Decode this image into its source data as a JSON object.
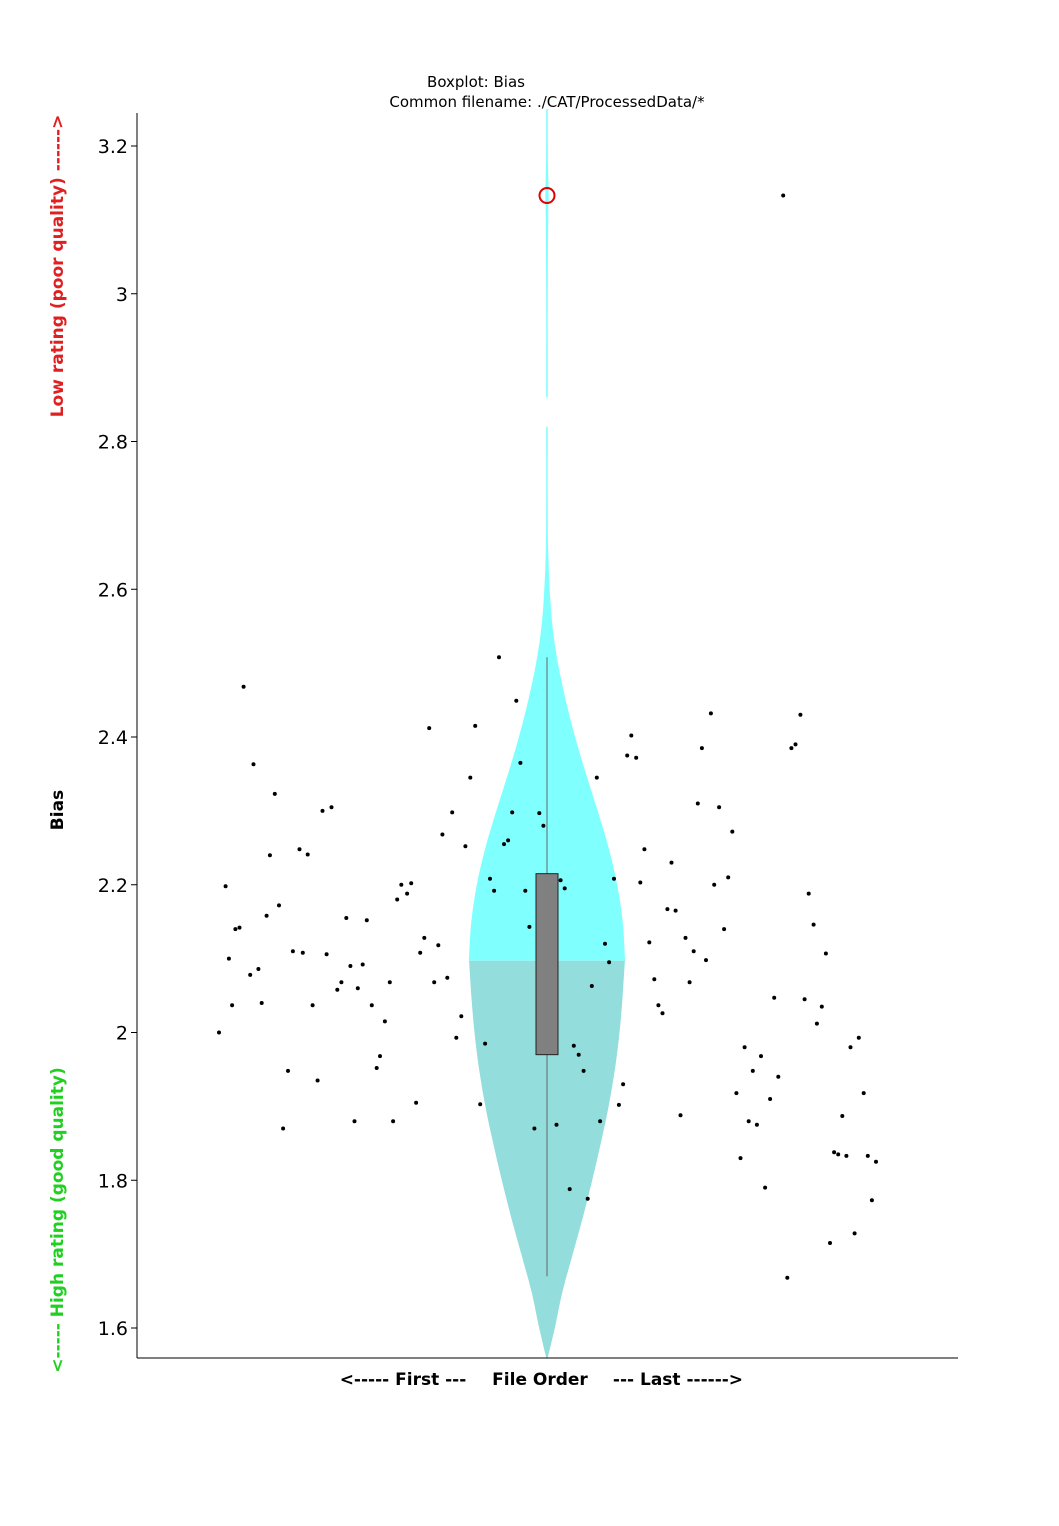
{
  "chart_data": {
    "type": "violin-boxplot",
    "title": "Boxplot: Bias",
    "subtitle": "Common filename: ./CAT/ProcessedData/*",
    "ylabel": "Bias",
    "xlabel_left": "<----- First ---",
    "xlabel_center": "File Order",
    "xlabel_right": "--- Last ------>",
    "quality_high_label": "Low rating (poor quality) ------>",
    "quality_low_label": "<----- High rating (good quality)",
    "ylim": [
      1.56,
      3.25
    ],
    "yticks": [
      1.6,
      1.8,
      2.0,
      2.2,
      2.4,
      2.6,
      2.8,
      3.0,
      3.2
    ],
    "ytick_labels": [
      "1.6",
      "1.8",
      "2",
      "2.2",
      "2.4",
      "2.6",
      "2.8",
      "3",
      "3.2"
    ],
    "box": {
      "q1": 1.97,
      "median": 2.097,
      "q3": 2.215,
      "whisker_low": 1.67,
      "whisker_high": 2.508
    },
    "outlier": 3.133,
    "violin_upper_color": "#80FFFF",
    "violin_lower_color": "#93DDDD",
    "box_color": "#808080",
    "outlier_color": "#E00000",
    "quality_high_color": "#E02020",
    "quality_low_color": "#20D020",
    "violin_profile": [
      [
        1.56,
        0.0
      ],
      [
        1.6,
        0.1
      ],
      [
        1.65,
        0.2
      ],
      [
        1.7,
        0.33
      ],
      [
        1.75,
        0.46
      ],
      [
        1.8,
        0.58
      ],
      [
        1.85,
        0.69
      ],
      [
        1.9,
        0.79
      ],
      [
        1.95,
        0.87
      ],
      [
        2.0,
        0.93
      ],
      [
        2.05,
        0.97
      ],
      [
        2.1,
        1.0
      ],
      [
        2.15,
        0.97
      ],
      [
        2.2,
        0.9
      ],
      [
        2.25,
        0.79
      ],
      [
        2.3,
        0.65
      ],
      [
        2.35,
        0.5
      ],
      [
        2.4,
        0.36
      ],
      [
        2.45,
        0.24
      ],
      [
        2.5,
        0.14
      ],
      [
        2.55,
        0.07
      ],
      [
        2.6,
        0.035
      ],
      [
        2.65,
        0.015
      ],
      [
        2.7,
        0.01
      ],
      [
        2.8,
        0.008
      ],
      [
        2.82,
        0.0
      ],
      [
        2.85,
        0.0
      ],
      [
        2.86,
        0.008
      ],
      [
        3.0,
        0.008
      ],
      [
        3.1,
        0.015
      ],
      [
        3.133,
        0.02
      ],
      [
        3.18,
        0.012
      ],
      [
        3.24,
        0.004
      ],
      [
        3.25,
        0.0
      ]
    ],
    "points": [
      [
        0.0,
        2.0
      ],
      [
        0.008,
        2.198
      ],
      [
        0.012,
        2.1
      ],
      [
        0.016,
        2.037
      ],
      [
        0.02,
        2.14
      ],
      [
        0.025,
        2.142
      ],
      [
        0.03,
        2.468
      ],
      [
        0.038,
        2.078
      ],
      [
        0.042,
        2.363
      ],
      [
        0.048,
        2.086
      ],
      [
        0.052,
        2.04
      ],
      [
        0.058,
        2.158
      ],
      [
        0.062,
        2.24
      ],
      [
        0.068,
        2.323
      ],
      [
        0.073,
        2.172
      ],
      [
        0.078,
        1.87
      ],
      [
        0.084,
        1.948
      ],
      [
        0.09,
        2.11
      ],
      [
        0.098,
        2.248
      ],
      [
        0.102,
        2.108
      ],
      [
        0.108,
        2.241
      ],
      [
        0.114,
        2.037
      ],
      [
        0.12,
        1.935
      ],
      [
        0.126,
        2.3
      ],
      [
        0.131,
        2.106
      ],
      [
        0.137,
        2.305
      ],
      [
        0.144,
        2.058
      ],
      [
        0.149,
        2.068
      ],
      [
        0.155,
        2.155
      ],
      [
        0.16,
        2.09
      ],
      [
        0.165,
        1.88
      ],
      [
        0.169,
        2.06
      ],
      [
        0.175,
        2.092
      ],
      [
        0.18,
        2.152
      ],
      [
        0.186,
        2.037
      ],
      [
        0.192,
        1.952
      ],
      [
        0.196,
        1.968
      ],
      [
        0.202,
        2.015
      ],
      [
        0.208,
        2.068
      ],
      [
        0.212,
        1.88
      ],
      [
        0.217,
        2.18
      ],
      [
        0.222,
        2.2
      ],
      [
        0.229,
        2.188
      ],
      [
        0.234,
        2.202
      ],
      [
        0.24,
        1.905
      ],
      [
        0.245,
        2.108
      ],
      [
        0.25,
        2.128
      ],
      [
        0.256,
        2.412
      ],
      [
        0.262,
        2.068
      ],
      [
        0.267,
        2.118
      ],
      [
        0.272,
        2.268
      ],
      [
        0.278,
        2.074
      ],
      [
        0.284,
        2.298
      ],
      [
        0.289,
        1.993
      ],
      [
        0.295,
        2.022
      ],
      [
        0.3,
        2.252
      ],
      [
        0.306,
        2.345
      ],
      [
        0.312,
        2.415
      ],
      [
        0.318,
        1.903
      ],
      [
        0.324,
        1.985
      ],
      [
        0.33,
        2.208
      ],
      [
        0.335,
        2.192
      ],
      [
        0.341,
        2.508
      ],
      [
        0.347,
        2.255
      ],
      [
        0.352,
        2.26
      ],
      [
        0.357,
        2.298
      ],
      [
        0.362,
        2.449
      ],
      [
        0.367,
        2.365
      ],
      [
        0.373,
        2.192
      ],
      [
        0.378,
        2.143
      ],
      [
        0.384,
        1.87
      ],
      [
        0.39,
        2.297
      ],
      [
        0.395,
        2.28
      ],
      [
        0.401,
        2.098
      ],
      [
        0.405,
        2.195
      ],
      [
        0.411,
        1.875
      ],
      [
        0.416,
        2.206
      ],
      [
        0.421,
        2.195
      ],
      [
        0.427,
        1.788
      ],
      [
        0.432,
        1.982
      ],
      [
        0.438,
        1.97
      ],
      [
        0.444,
        1.948
      ],
      [
        0.449,
        1.775
      ],
      [
        0.454,
        2.063
      ],
      [
        0.46,
        2.345
      ],
      [
        0.464,
        1.88
      ],
      [
        0.47,
        2.12
      ],
      [
        0.475,
        2.095
      ],
      [
        0.481,
        2.208
      ],
      [
        0.487,
        1.902
      ],
      [
        0.492,
        1.93
      ],
      [
        0.497,
        2.375
      ],
      [
        0.502,
        2.402
      ],
      [
        0.508,
        2.372
      ],
      [
        0.513,
        2.203
      ],
      [
        0.518,
        2.248
      ],
      [
        0.524,
        2.122
      ],
      [
        0.53,
        2.072
      ],
      [
        0.535,
        2.037
      ],
      [
        0.54,
        2.026
      ],
      [
        0.546,
        2.167
      ],
      [
        0.551,
        2.23
      ],
      [
        0.556,
        2.165
      ],
      [
        0.562,
        1.888
      ],
      [
        0.568,
        2.128
      ],
      [
        0.573,
        2.068
      ],
      [
        0.578,
        2.11
      ],
      [
        0.583,
        2.31
      ],
      [
        0.588,
        2.385
      ],
      [
        0.593,
        2.098
      ],
      [
        0.599,
        2.432
      ],
      [
        0.603,
        2.2
      ],
      [
        0.609,
        2.305
      ],
      [
        0.615,
        2.14
      ],
      [
        0.62,
        2.21
      ],
      [
        0.625,
        2.272
      ],
      [
        0.63,
        1.918
      ],
      [
        0.635,
        1.83
      ],
      [
        0.64,
        1.98
      ],
      [
        0.645,
        1.88
      ],
      [
        0.65,
        1.948
      ],
      [
        0.655,
        1.875
      ],
      [
        0.66,
        1.968
      ],
      [
        0.665,
        1.79
      ],
      [
        0.671,
        1.91
      ],
      [
        0.676,
        2.047
      ],
      [
        0.681,
        1.94
      ],
      [
        0.687,
        3.133
      ],
      [
        0.692,
        1.668
      ],
      [
        0.697,
        2.385
      ],
      [
        0.702,
        2.39
      ],
      [
        0.708,
        2.43
      ],
      [
        0.713,
        2.045
      ],
      [
        0.718,
        2.188
      ],
      [
        0.724,
        2.146
      ],
      [
        0.728,
        2.012
      ],
      [
        0.734,
        2.035
      ],
      [
        0.739,
        2.107
      ],
      [
        0.744,
        1.715
      ],
      [
        0.749,
        1.838
      ],
      [
        0.754,
        1.835
      ],
      [
        0.759,
        1.887
      ],
      [
        0.764,
        1.833
      ],
      [
        0.769,
        1.98
      ],
      [
        0.774,
        1.728
      ],
      [
        0.779,
        1.993
      ],
      [
        0.785,
        1.918
      ],
      [
        0.79,
        1.833
      ],
      [
        0.795,
        1.773
      ],
      [
        0.8,
        1.825
      ]
    ]
  }
}
